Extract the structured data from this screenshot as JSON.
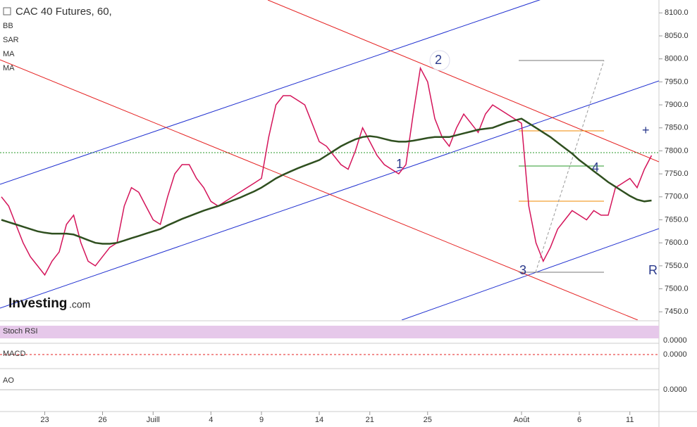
{
  "header": {
    "title": "CAC 40 Futures, 60,",
    "indicators": [
      "BB",
      "SAR",
      "MA",
      "MA"
    ]
  },
  "logo": {
    "name": "Investing",
    "suffix": ".com"
  },
  "annotations": [
    "1",
    "2",
    "3",
    "4",
    "+",
    "R"
  ],
  "panels": {
    "names": [
      "Stoch RSI",
      "MACD",
      "AO"
    ],
    "zero_labels": [
      "0.0000",
      "0.0000",
      "0.0000"
    ]
  },
  "chart_data": {
    "type": "line",
    "categories": [
      null,
      null,
      null,
      null,
      null,
      null,
      "23",
      null,
      null,
      null,
      null,
      null,
      null,
      null,
      "26",
      null,
      null,
      null,
      null,
      null,
      null,
      "Juill",
      null,
      null,
      null,
      null,
      null,
      null,
      null,
      "4",
      null,
      null,
      null,
      null,
      null,
      null,
      "9",
      null,
      null,
      null,
      null,
      null,
      null,
      null,
      "14",
      null,
      null,
      null,
      null,
      null,
      null,
      "21",
      null,
      null,
      null,
      null,
      null,
      null,
      null,
      "25",
      null,
      null,
      null,
      null,
      null,
      null,
      null,
      null,
      null,
      null,
      null,
      null,
      "Août",
      null,
      null,
      null,
      null,
      null,
      null,
      null,
      "6",
      null,
      null,
      null,
      null,
      null,
      null,
      "11",
      null,
      null,
      null
    ],
    "series": [
      {
        "name": "Price",
        "color": "#d4145a",
        "values": [
          7700,
          7680,
          7640,
          7600,
          7570,
          7550,
          7530,
          7560,
          7580,
          7640,
          7660,
          7600,
          7560,
          7550,
          7570,
          7590,
          7600,
          7680,
          7720,
          7710,
          7680,
          7650,
          7640,
          7700,
          7750,
          7770,
          7770,
          7740,
          7720,
          7690,
          7680,
          7690,
          7700,
          7710,
          7720,
          7730,
          7740,
          7830,
          7900,
          7920,
          7920,
          7910,
          7900,
          7860,
          7820,
          7810,
          7790,
          7770,
          7760,
          7800,
          7850,
          7820,
          7790,
          7770,
          7760,
          7750,
          7770,
          7880,
          7980,
          7950,
          7870,
          7830,
          7810,
          7850,
          7880,
          7860,
          7840,
          7880,
          7900,
          7890,
          7880,
          7870,
          7860,
          7680,
          7600,
          7560,
          7590,
          7630,
          7650,
          7670,
          7660,
          7650,
          7670,
          7660,
          7660,
          7720,
          7730,
          7740,
          7720,
          7760,
          7790
        ]
      },
      {
        "name": "MA",
        "color": "#2f4f1f",
        "values": [
          7650,
          7645,
          7640,
          7635,
          7630,
          7625,
          7622,
          7620,
          7620,
          7620,
          7618,
          7612,
          7606,
          7600,
          7598,
          7598,
          7600,
          7605,
          7610,
          7615,
          7620,
          7625,
          7630,
          7638,
          7645,
          7652,
          7658,
          7664,
          7670,
          7675,
          7680,
          7686,
          7692,
          7698,
          7705,
          7712,
          7720,
          7730,
          7740,
          7748,
          7755,
          7762,
          7768,
          7774,
          7780,
          7790,
          7800,
          7810,
          7818,
          7825,
          7830,
          7832,
          7830,
          7826,
          7822,
          7820,
          7820,
          7822,
          7825,
          7828,
          7830,
          7830,
          7830,
          7834,
          7838,
          7842,
          7846,
          7848,
          7850,
          7856,
          7862,
          7866,
          7870,
          7860,
          7850,
          7840,
          7830,
          7818,
          7806,
          7794,
          7780,
          7768,
          7756,
          7744,
          7732,
          7722,
          7712,
          7702,
          7694,
          7690,
          7692
        ]
      }
    ],
    "ylim": [
      7432,
      8128
    ],
    "yticks": [
      {
        "value": 7450,
        "label": "7450.0"
      },
      {
        "value": 7500,
        "label": "7500.0"
      },
      {
        "value": 7550,
        "label": "7550.0"
      },
      {
        "value": 7600,
        "label": "7600.0"
      },
      {
        "value": 7650,
        "label": "7650.0"
      },
      {
        "value": 7700,
        "label": "7700.0"
      },
      {
        "value": 7750,
        "label": "7750.0"
      },
      {
        "value": 7800,
        "label": "7800.0"
      },
      {
        "value": 7850,
        "label": "7850.0"
      },
      {
        "value": 7900,
        "label": "7900.0"
      },
      {
        "value": 7950,
        "label": "7950.0"
      },
      {
        "value": 8000,
        "label": "8000.0"
      },
      {
        "value": 8050,
        "label": "8050.0"
      },
      {
        "value": 8100,
        "label": "8100.0"
      }
    ],
    "grid": false
  }
}
